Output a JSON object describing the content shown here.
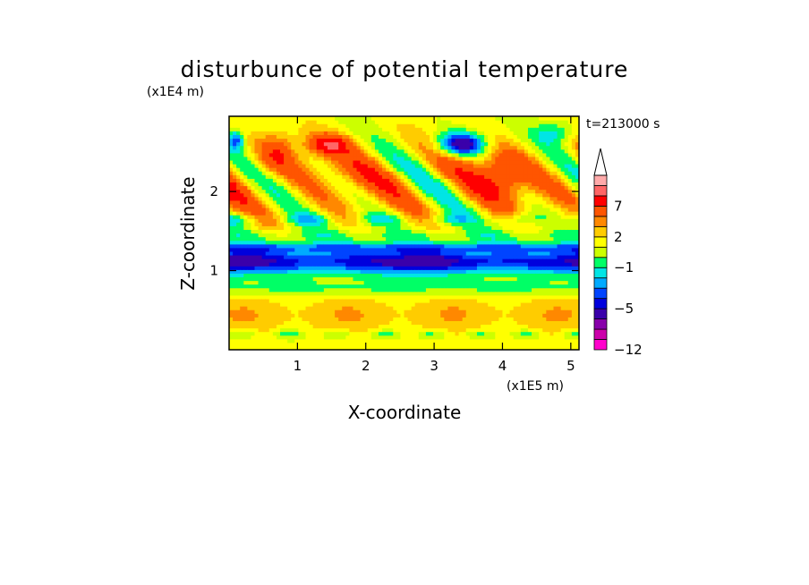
{
  "chart_data": {
    "type": "heatmap",
    "title": "disturbunce of potential temperature",
    "xlabel": "X-coordinate",
    "ylabel": "Z-coordinate",
    "x_unit": "(x1E5 m)",
    "y_unit": "(x1E4 m)",
    "time_label": "t=213000 s",
    "xlim": [
      0,
      5.12
    ],
    "ylim": [
      0,
      2.95
    ],
    "x_ticks": [
      "1",
      "2",
      "3",
      "4",
      "5"
    ],
    "x_tick_values": [
      1,
      2,
      3,
      4,
      5
    ],
    "y_ticks": [
      "1",
      "2"
    ],
    "y_tick_values": [
      1,
      2
    ],
    "colorbar": {
      "levels": [
        -12,
        -10,
        -8,
        -6,
        -5,
        -4,
        -3,
        -2,
        -1,
        0,
        1,
        2,
        3,
        5,
        7,
        9,
        11
      ],
      "colors": [
        "#ff00cc",
        "#cc00aa",
        "#8800aa",
        "#3a00aa",
        "#0000dd",
        "#0044ff",
        "#00aaff",
        "#00e5e5",
        "#00ff66",
        "#ccff00",
        "#ffff00",
        "#ffcc00",
        "#ff8800",
        "#ff5500",
        "#ff0000",
        "#ff6666",
        "#ffaaaa",
        "#ffffff"
      ],
      "labels": [
        "7",
        "2",
        "-1",
        "-5",
        "-12"
      ],
      "label_values": [
        7,
        2,
        -1,
        -5,
        -12
      ],
      "extend": "max"
    },
    "grid": false
  }
}
